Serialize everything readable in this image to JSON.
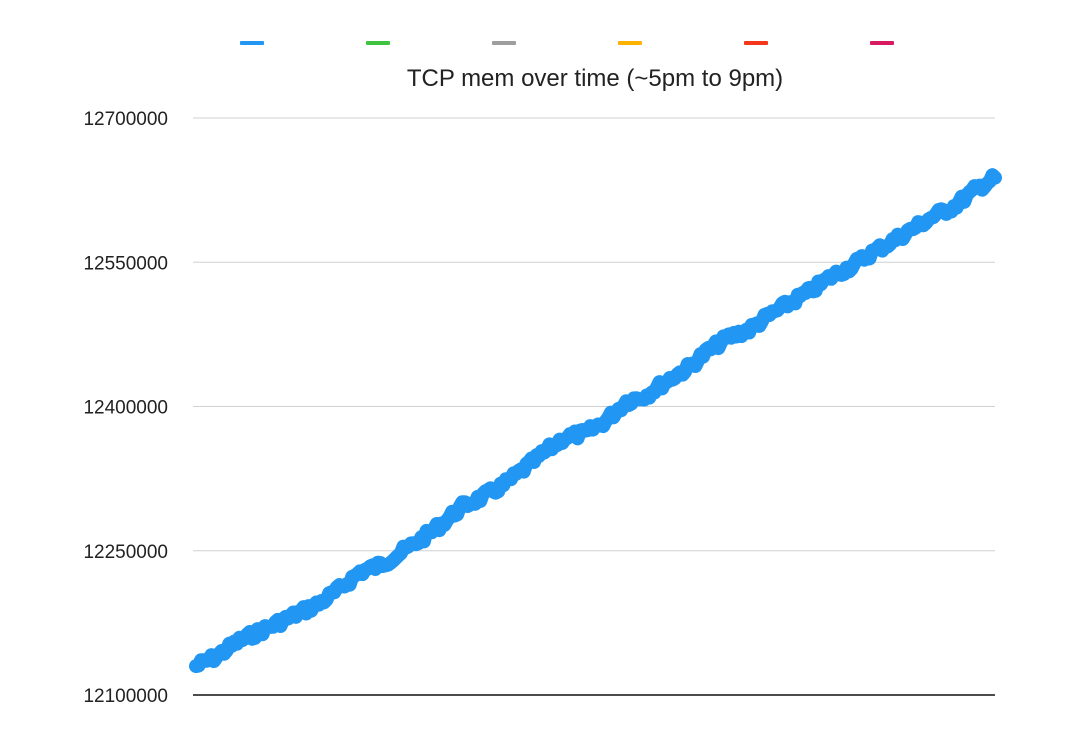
{
  "chart_data": {
    "type": "line",
    "title": "TCP mem over time (~5pm to 9pm)",
    "xlabel": "",
    "ylabel": "",
    "ylim": [
      12100000,
      12700000
    ],
    "yticks": [
      12100000,
      12250000,
      12400000,
      12550000,
      12700000
    ],
    "ytick_labels": [
      "12100000",
      "12250000",
      "12400000",
      "12550000",
      "12700000"
    ],
    "grid": true,
    "legend_position": "top",
    "legend_colors": [
      "#2196f3",
      "#3ec43e",
      "#9e9e9e",
      "#ffb300",
      "#f4361b",
      "#d81b60"
    ],
    "series": [
      {
        "color": "#2196f3",
        "values": [
          12130000,
          12140000,
          12155000,
          12165000,
          12175000,
          12185000,
          12195000,
          12210000,
          12228000,
          12235000,
          12248000,
          12262000,
          12278000,
          12296000,
          12306000,
          12318000,
          12335000,
          12352000,
          12368000,
          12372000,
          12385000,
          12405000,
          12412000,
          12427000,
          12440000,
          12458000,
          12472000,
          12480000,
          12495000,
          12508000,
          12520000,
          12535000,
          12546000,
          12560000,
          12572000,
          12585000,
          12598000,
          12608000,
          12625000,
          12638000
        ]
      }
    ]
  }
}
